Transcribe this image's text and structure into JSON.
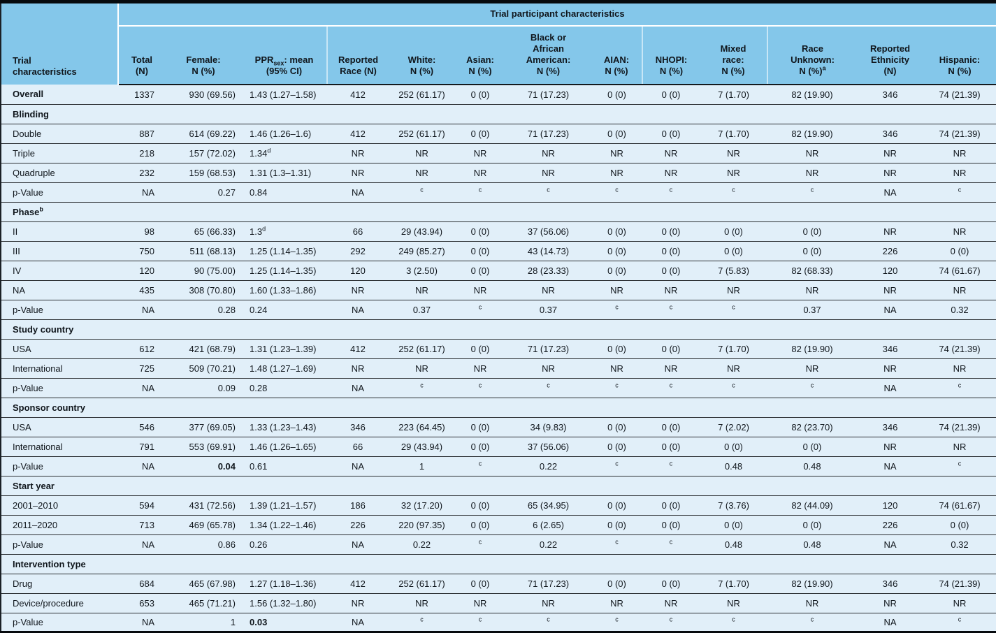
{
  "table": {
    "span_header": "Trial participant characteristics",
    "columns": [
      {
        "id": "trial",
        "header": "Trial\ncharacteristics",
        "align": "left"
      },
      {
        "id": "total",
        "header": "Total\n(N)",
        "align": "right"
      },
      {
        "id": "female",
        "header": "Female:\nN (%)",
        "align": "right"
      },
      {
        "id": "ppr",
        "header": "PPR_{sex}: mean\n(95% CI)",
        "align": "left"
      },
      {
        "id": "reported_race",
        "header": "Reported\nRace (N)",
        "align": "center"
      },
      {
        "id": "white",
        "header": "White:\nN (%)",
        "align": "center"
      },
      {
        "id": "asian",
        "header": "Asian:\nN (%)",
        "align": "center"
      },
      {
        "id": "black",
        "header": "Black or\nAfrican\nAmerican:\nN (%)",
        "align": "center"
      },
      {
        "id": "aian",
        "header": "AIAN:\nN (%)",
        "align": "center"
      },
      {
        "id": "nhopi",
        "header": "NHOPI:\nN (%)",
        "align": "center"
      },
      {
        "id": "mixed",
        "header": "Mixed\nrace:\nN (%)",
        "align": "center"
      },
      {
        "id": "race_unknown",
        "header": "Race\nUnknown:\nN (%)^a",
        "align": "center"
      },
      {
        "id": "reported_ethnicity",
        "header": "Reported\nEthnicity\n(N)",
        "align": "center"
      },
      {
        "id": "hispanic",
        "header": "Hispanic:\nN (%)",
        "align": "center"
      }
    ],
    "rows": [
      {
        "type": "data",
        "bold": true,
        "label": "Overall",
        "cells": [
          "1337",
          "930 (69.56)",
          "1.43 (1.27–1.58)",
          "412",
          "252 (61.17)",
          "0 (0)",
          "71 (17.23)",
          "0 (0)",
          "0 (0)",
          "7 (1.70)",
          "82 (19.90)",
          "346",
          "74 (21.39)"
        ]
      },
      {
        "type": "section",
        "label": "Blinding"
      },
      {
        "type": "data",
        "label": "Double",
        "cells": [
          "887",
          "614 (69.22)",
          "1.46 (1.26–1.6)",
          "412",
          "252 (61.17)",
          "0 (0)",
          "71 (17.23)",
          "0 (0)",
          "0 (0)",
          "7 (1.70)",
          "82 (19.90)",
          "346",
          "74 (21.39)"
        ]
      },
      {
        "type": "data",
        "label": "Triple",
        "cells": [
          "218",
          "157 (72.02)",
          "1.34^d",
          "NR",
          "NR",
          "NR",
          "NR",
          "NR",
          "NR",
          "NR",
          "NR",
          "NR",
          "NR"
        ]
      },
      {
        "type": "data",
        "label": "Quadruple",
        "cells": [
          "232",
          "159 (68.53)",
          "1.31 (1.3–1.31)",
          "NR",
          "NR",
          "NR",
          "NR",
          "NR",
          "NR",
          "NR",
          "NR",
          "NR",
          "NR"
        ]
      },
      {
        "type": "data",
        "label": "p-Value",
        "cells": [
          "NA",
          "0.27",
          "0.84",
          "NA",
          "^c",
          "^c",
          "^c",
          "^c",
          "^c",
          "^c",
          "^c",
          "NA",
          "^c"
        ]
      },
      {
        "type": "section",
        "label": "Phase^b"
      },
      {
        "type": "data",
        "label": "II",
        "cells": [
          "98",
          "65 (66.33)",
          "1.3^d",
          "66",
          "29 (43.94)",
          "0 (0)",
          "37 (56.06)",
          "0 (0)",
          "0 (0)",
          "0 (0)",
          "0 (0)",
          "NR",
          "NR"
        ]
      },
      {
        "type": "data",
        "label": "III",
        "cells": [
          "750",
          "511 (68.13)",
          "1.25 (1.14–1.35)",
          "292",
          "249 (85.27)",
          "0 (0)",
          "43 (14.73)",
          "0 (0)",
          "0 (0)",
          "0 (0)",
          "0 (0)",
          "226",
          "0 (0)"
        ]
      },
      {
        "type": "data",
        "label": "IV",
        "cells": [
          "120",
          "90 (75.00)",
          "1.25 (1.14–1.35)",
          "120",
          "3 (2.50)",
          "0 (0)",
          "28 (23.33)",
          "0 (0)",
          "0 (0)",
          "7 (5.83)",
          "82 (68.33)",
          "120",
          "74 (61.67)"
        ]
      },
      {
        "type": "data",
        "label": "NA",
        "cells": [
          "435",
          "308 (70.80)",
          "1.60 (1.33–1.86)",
          "NR",
          "NR",
          "NR",
          "NR",
          "NR",
          "NR",
          "NR",
          "NR",
          "NR",
          "NR"
        ]
      },
      {
        "type": "data",
        "label": "p-Value",
        "cells": [
          "NA",
          "0.28",
          "0.24",
          "NA",
          "0.37",
          "^c",
          "0.37",
          "^c",
          "^c",
          "^c",
          "0.37",
          "NA",
          "0.32"
        ]
      },
      {
        "type": "section",
        "label": "Study country"
      },
      {
        "type": "data",
        "label": "USA",
        "cells": [
          "612",
          "421 (68.79)",
          "1.31 (1.23–1.39)",
          "412",
          "252 (61.17)",
          "0 (0)",
          "71 (17.23)",
          "0 (0)",
          "0 (0)",
          "7 (1.70)",
          "82 (19.90)",
          "346",
          "74 (21.39)"
        ]
      },
      {
        "type": "data",
        "label": "International",
        "cells": [
          "725",
          "509 (70.21)",
          "1.48 (1.27–1.69)",
          "NR",
          "NR",
          "NR",
          "NR",
          "NR",
          "NR",
          "NR",
          "NR",
          "NR",
          "NR"
        ]
      },
      {
        "type": "data",
        "label": "p-Value",
        "cells": [
          "NA",
          "0.09",
          "0.28",
          "NA",
          "^c",
          "^c",
          "^c",
          "^c",
          "^c",
          "^c",
          "^c",
          "NA",
          "^c"
        ]
      },
      {
        "type": "section",
        "label": "Sponsor country"
      },
      {
        "type": "data",
        "label": "USA",
        "cells": [
          "546",
          "377 (69.05)",
          "1.33 (1.23–1.43)",
          "346",
          "223 (64.45)",
          "0 (0)",
          "34 (9.83)",
          "0 (0)",
          "0 (0)",
          "7 (2.02)",
          "82 (23.70)",
          "346",
          "74 (21.39)"
        ]
      },
      {
        "type": "data",
        "label": "International",
        "cells": [
          "791",
          "553 (69.91)",
          "1.46 (1.26–1.65)",
          "66",
          "29 (43.94)",
          "0 (0)",
          "37 (56.06)",
          "0 (0)",
          "0 (0)",
          "0 (0)",
          "0 (0)",
          "NR",
          "NR"
        ]
      },
      {
        "type": "data",
        "label": "p-Value",
        "cells": [
          "NA",
          "**0.04**",
          "0.61",
          "NA",
          "1",
          "^c",
          "0.22",
          "^c",
          "^c",
          "0.48",
          "0.48",
          "NA",
          "^c"
        ]
      },
      {
        "type": "section",
        "label": "Start year"
      },
      {
        "type": "data",
        "label": "2001–2010",
        "cells": [
          "594",
          "431 (72.56)",
          "1.39 (1.21–1.57)",
          "186",
          "32 (17.20)",
          "0 (0)",
          "65 (34.95)",
          "0 (0)",
          "0 (0)",
          "7 (3.76)",
          "82 (44.09)",
          "120",
          "74 (61.67)"
        ]
      },
      {
        "type": "data",
        "label": "2011–2020",
        "cells": [
          "713",
          "469 (65.78)",
          "1.34 (1.22–1.46)",
          "226",
          "220 (97.35)",
          "0 (0)",
          "6 (2.65)",
          "0 (0)",
          "0 (0)",
          "0 (0)",
          "0 (0)",
          "226",
          "0 (0)"
        ]
      },
      {
        "type": "data",
        "label": "p-Value",
        "cells": [
          "NA",
          "0.86",
          "0.26",
          "NA",
          "0.22",
          "^c",
          "0.22",
          "^c",
          "^c",
          "0.48",
          "0.48",
          "NA",
          "0.32"
        ]
      },
      {
        "type": "section",
        "label": "Intervention type"
      },
      {
        "type": "data",
        "label": "Drug",
        "cells": [
          "684",
          "465 (67.98)",
          "1.27 (1.18–1.36)",
          "412",
          "252 (61.17)",
          "0 (0)",
          "71 (17.23)",
          "0 (0)",
          "0 (0)",
          "7 (1.70)",
          "82 (19.90)",
          "346",
          "74 (21.39)"
        ]
      },
      {
        "type": "data",
        "label": "Device/procedure",
        "cells": [
          "653",
          "465 (71.21)",
          "1.56 (1.32–1.80)",
          "NR",
          "NR",
          "NR",
          "NR",
          "NR",
          "NR",
          "NR",
          "NR",
          "NR",
          "NR"
        ]
      },
      {
        "type": "data",
        "label": "p-Value",
        "cells": [
          "NA",
          "1",
          "**0.03**",
          "NA",
          "^c",
          "^c",
          "^c",
          "^c",
          "^c",
          "^c",
          "^c",
          "NA",
          "^c"
        ]
      }
    ]
  }
}
